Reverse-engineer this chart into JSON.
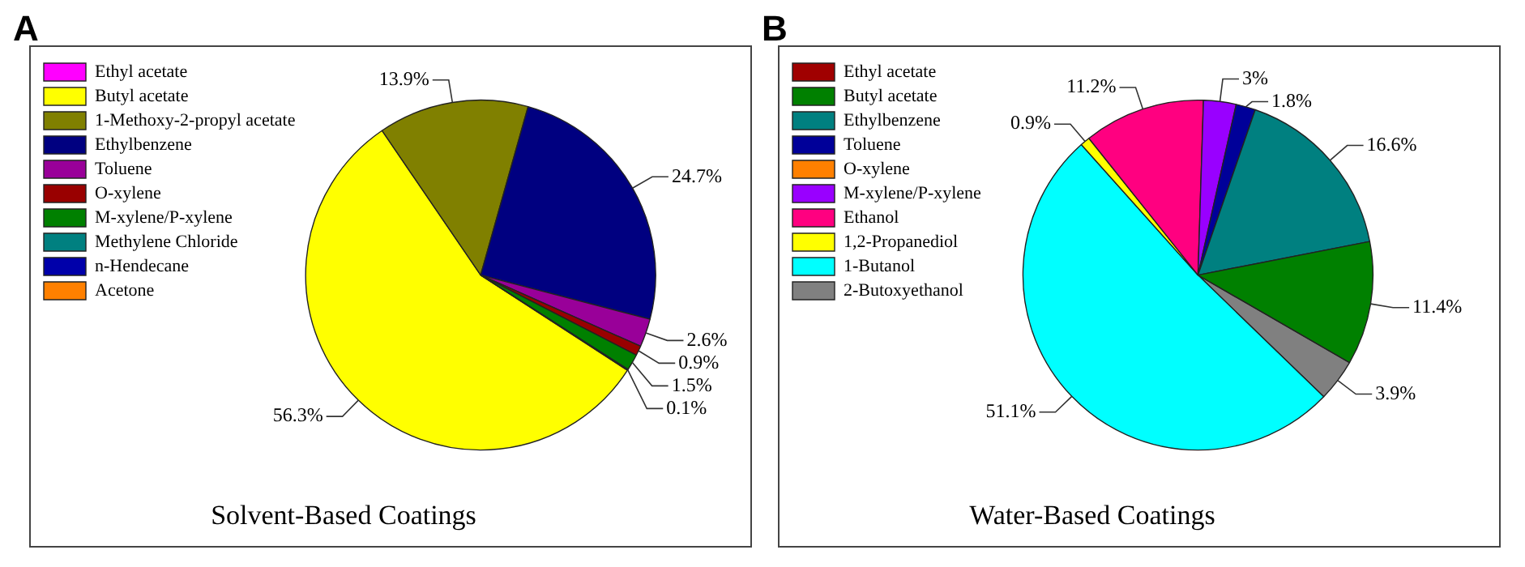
{
  "chart_data": [
    {
      "type": "pie",
      "title": "Solvent-Based Coatings",
      "annotations": [
        "A"
      ],
      "legend": "top left",
      "categories": [
        "Ethyl acetate",
        "Butyl acetate",
        "1-Methoxy-2-propyl acetate",
        "Ethylbenzene",
        "Toluene",
        "O-xylene",
        "M-xylene/P-xylene",
        "Methylene Chloride",
        "n-Hendecane",
        "Acetone"
      ],
      "values": [
        0,
        56.3,
        13.9,
        24.7,
        2.6,
        0.9,
        1.5,
        0.1,
        0,
        0
      ],
      "value_labels": [
        null,
        "56.3%",
        "13.9%",
        "24.7%",
        "2.6%",
        "0.9%",
        "1.5%",
        "0.1%",
        null,
        null
      ],
      "colors": [
        "#ff00ff",
        "#ffff00",
        "#808000",
        "#000080",
        "#990099",
        "#990000",
        "#008000",
        "#008080",
        "#0000aa",
        "#ff8000"
      ]
    },
    {
      "type": "pie",
      "title": "Water-Based Coatings",
      "annotations": [
        "B"
      ],
      "legend": "top left",
      "categories": [
        "Ethyl acetate",
        "Butyl acetate",
        "Ethylbenzene",
        "Toluene",
        "O-xylene",
        "M-xylene/P-xylene",
        "Ethanol",
        "1,2-Propanediol",
        "1-Butanol",
        "2-Butoxyethanol"
      ],
      "values": [
        0,
        11.4,
        16.6,
        1.8,
        0,
        3,
        11.2,
        0.9,
        51.1,
        3.9
      ],
      "value_labels": [
        null,
        "11.4%",
        "16.6%",
        "1.8%",
        null,
        "3%",
        "11.2%",
        "0.9%",
        "51.1%",
        "3.9%"
      ],
      "colors": [
        "#a00000",
        "#008000",
        "#008080",
        "#000099",
        "#ff8000",
        "#9900ff",
        "#ff0080",
        "#ffff00",
        "#00ffff",
        "#808080"
      ]
    }
  ]
}
